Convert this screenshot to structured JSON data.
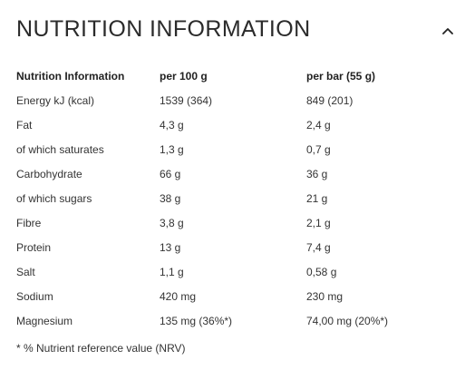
{
  "section": {
    "title": "NUTRITION INFORMATION",
    "toggle_icon": "chevron-up-icon"
  },
  "table": {
    "headers": [
      "Nutrition Information",
      "per 100 g",
      "per bar (55 g)"
    ],
    "rows": [
      [
        "Energy kJ (kcal)",
        "1539 (364)",
        "849 (201)"
      ],
      [
        "Fat",
        "4,3 g",
        "2,4 g"
      ],
      [
        "of which saturates",
        "1,3 g",
        "0,7 g"
      ],
      [
        "Carbohydrate",
        "66 g",
        "36 g"
      ],
      [
        "of which sugars",
        "38 g",
        "21 g"
      ],
      [
        "Fibre",
        "3,8 g",
        "2,1 g"
      ],
      [
        "Protein",
        "13 g",
        "7,4 g"
      ],
      [
        "Salt",
        "1,1 g",
        "0,58 g"
      ],
      [
        "Sodium",
        "420 mg",
        "230 mg"
      ],
      [
        "Magnesium",
        "135 mg (36%*)",
        "74,00 mg (20%*)"
      ]
    ]
  },
  "footnote": "* % Nutrient reference value (NRV)"
}
